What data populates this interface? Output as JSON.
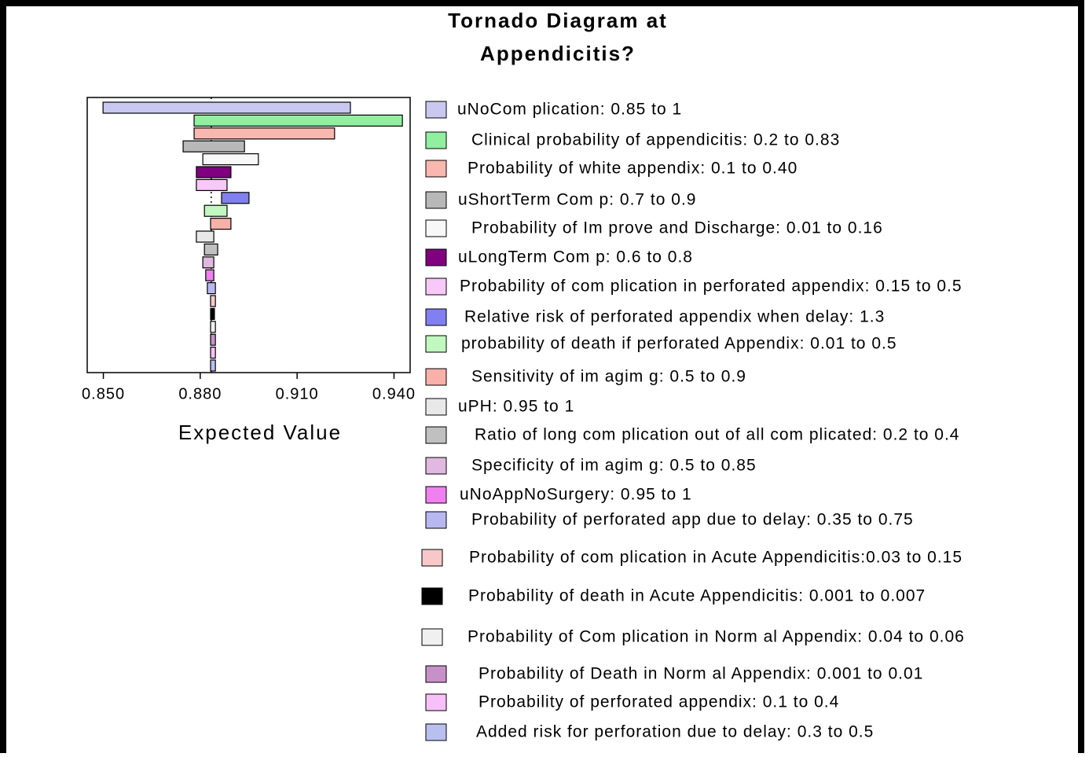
{
  "chart_data": {
    "type": "tornado",
    "title": [
      "Tornado Diagram at",
      "Appendicitis?"
    ],
    "xlabel": "Expected Value",
    "xlim": [
      0.845,
      0.945
    ],
    "xticks": [
      {
        "value": 0.85,
        "label": "0.850"
      },
      {
        "value": 0.88,
        "label": "0.880"
      },
      {
        "value": 0.91,
        "label": "0.910"
      },
      {
        "value": 0.94,
        "label": "0.940"
      }
    ],
    "base_value": 0.8834,
    "categories": [
      "uNoCom plication: 0.85 to 1",
      "Clinical probability of appendicitis: 0.2 to 0.83",
      "Probability of white appendix: 0.1 to 0.40",
      "uShortTerm Com p: 0.7 to 0.9",
      "Probability of Im prove and Discharge: 0.01 to 0.16",
      "uLongTerm Com p: 0.6 to 0.8",
      "Probability of com plication in perforated appendix: 0.15 to 0.5",
      "Relative risk of perforated appendix  when delay: 1.3",
      "probability of death if perforated Appendix: 0.01 to 0.5",
      "Sensitivity of im agim g: 0.5 to 0.9",
      "uPH: 0.95 to 1",
      "Ratio of long com plication out of all com plicated: 0.2 to 0.4",
      "Specificity of im agim g: 0.5 to 0.85",
      "uNoAppNoSurgery: 0.95 to 1",
      "Probability of perforated app due to delay: 0.35 to 0.75",
      "Probability of com plication in Acute Appendicitis:0.03 to 0.15",
      "Probability of death in Acute Appendicitis: 0.001 to 0.007",
      "Probability of Com plication in Norm al Appendix: 0.04 to 0.06",
      "Probability of Death in Norm al Appendix: 0.001 to 0.01",
      "Probability of perforated appendix: 0.1 to 0.4",
      "Added risk for perforation due to delay: 0.3 to 0.5"
    ],
    "low": [
      0.8499,
      0.8781,
      0.8781,
      0.8747,
      0.8808,
      0.8788,
      0.8788,
      0.8866,
      0.8813,
      0.8832,
      0.8788,
      0.8813,
      0.8808,
      0.8817,
      0.8822,
      0.8832,
      0.8832,
      0.8832,
      0.8832,
      0.8832,
      0.8832
    ],
    "high": [
      0.9265,
      0.9426,
      0.9216,
      0.8937,
      0.898,
      0.8895,
      0.8883,
      0.8951,
      0.8883,
      0.8895,
      0.8842,
      0.8854,
      0.8842,
      0.8842,
      0.8847,
      0.8847,
      0.8844,
      0.8847,
      0.8847,
      0.8847,
      0.8847
    ],
    "colors": [
      "#c8c8f0",
      "#90f0a0",
      "#f8b8b0",
      "#b8b8b8",
      "#f8f8f8",
      "#800080",
      "#f8c8f8",
      "#8080f0",
      "#c0f8c0",
      "#f8b0a8",
      "#e8e8e8",
      "#c0c0c0",
      "#e0b8e0",
      "#f080f0",
      "#b8b8f0",
      "#f8c8c8",
      "#000000",
      "#f0f0f0",
      "#c890c8",
      "#f8c0f8",
      "#b8c0f0"
    ]
  }
}
